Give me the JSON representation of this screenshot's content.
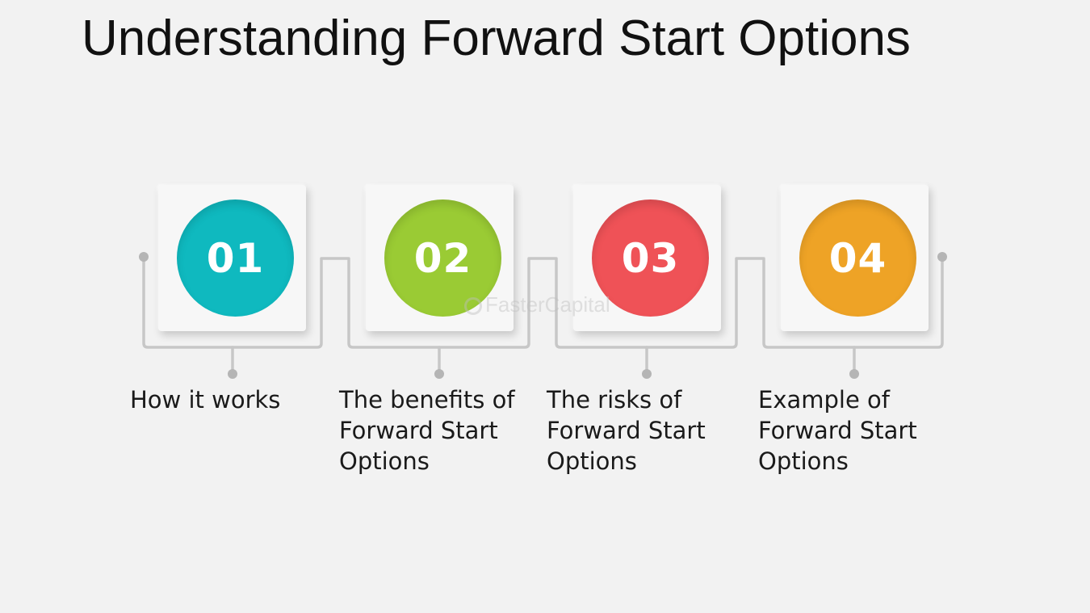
{
  "title": "Understanding Forward Start Options",
  "steps": [
    {
      "number": "01",
      "label": "How it works",
      "color": "#0fb9bf"
    },
    {
      "number": "02",
      "label": "The benefits of Forward Start Options",
      "color": "#9acb34"
    },
    {
      "number": "03",
      "label": "The risks of Forward Start Options",
      "color": "#ef5257"
    },
    {
      "number": "04",
      "label": "Example of Forward Start Options",
      "color": "#eea326"
    }
  ],
  "watermark": "FasterCapital",
  "connector_color": "#c7c7c7"
}
